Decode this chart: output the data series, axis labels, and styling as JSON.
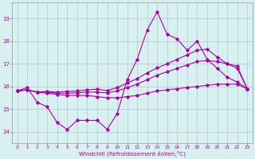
{
  "xlabel": "Windchill (Refroidissement éolien,°C)",
  "xlim": [
    -0.5,
    23.5
  ],
  "ylim": [
    13.5,
    19.7
  ],
  "yticks": [
    14,
    15,
    16,
    17,
    18,
    19
  ],
  "xticks": [
    0,
    1,
    2,
    3,
    4,
    5,
    6,
    7,
    8,
    9,
    10,
    11,
    12,
    13,
    14,
    15,
    16,
    17,
    18,
    19,
    20,
    21,
    22,
    23
  ],
  "bg_color": "#d8f0f0",
  "grid_color": "#b0c8c8",
  "line_color": "#aa00aa",
  "line1_x": [
    0,
    1,
    2,
    3,
    4,
    5,
    6,
    7,
    8,
    9,
    10,
    11,
    12,
    13,
    14,
    15,
    16,
    17,
    18,
    19,
    20,
    21,
    22,
    23
  ],
  "line1_y": [
    15.8,
    15.95,
    15.3,
    15.1,
    14.4,
    14.1,
    14.5,
    14.5,
    14.5,
    14.1,
    14.8,
    16.3,
    17.2,
    18.5,
    19.3,
    18.3,
    18.1,
    17.6,
    18.0,
    17.2,
    16.8,
    16.4,
    16.2,
    15.9
  ],
  "line2_x": [
    0,
    1,
    2,
    3,
    4,
    5,
    6,
    7,
    8,
    9,
    10,
    11,
    12,
    13,
    14,
    15,
    16,
    17,
    18,
    19,
    20,
    21,
    22,
    23
  ],
  "line2_y": [
    15.8,
    15.85,
    15.75,
    15.7,
    15.65,
    15.6,
    15.6,
    15.6,
    15.55,
    15.5,
    15.5,
    15.55,
    15.6,
    15.7,
    15.8,
    15.85,
    15.9,
    15.95,
    16.0,
    16.05,
    16.1,
    16.1,
    16.1,
    15.9
  ],
  "line3_x": [
    0,
    1,
    2,
    3,
    4,
    5,
    6,
    7,
    8,
    9,
    10,
    11,
    12,
    13,
    14,
    15,
    16,
    17,
    18,
    19,
    20,
    21,
    22,
    23
  ],
  "line3_y": [
    15.8,
    15.85,
    15.75,
    15.75,
    15.7,
    15.7,
    15.72,
    15.75,
    15.75,
    15.72,
    15.8,
    15.95,
    16.1,
    16.3,
    16.5,
    16.65,
    16.8,
    16.95,
    17.1,
    17.15,
    17.1,
    17.0,
    16.9,
    15.9
  ],
  "line4_x": [
    0,
    1,
    2,
    3,
    4,
    5,
    6,
    7,
    8,
    9,
    10,
    11,
    12,
    13,
    14,
    15,
    16,
    17,
    18,
    19,
    20,
    21,
    22,
    23
  ],
  "line4_y": [
    15.8,
    15.85,
    15.75,
    15.78,
    15.75,
    15.78,
    15.8,
    15.85,
    15.88,
    15.82,
    15.95,
    16.15,
    16.35,
    16.6,
    16.82,
    17.0,
    17.2,
    17.4,
    17.6,
    17.65,
    17.3,
    17.0,
    16.8,
    15.9
  ]
}
